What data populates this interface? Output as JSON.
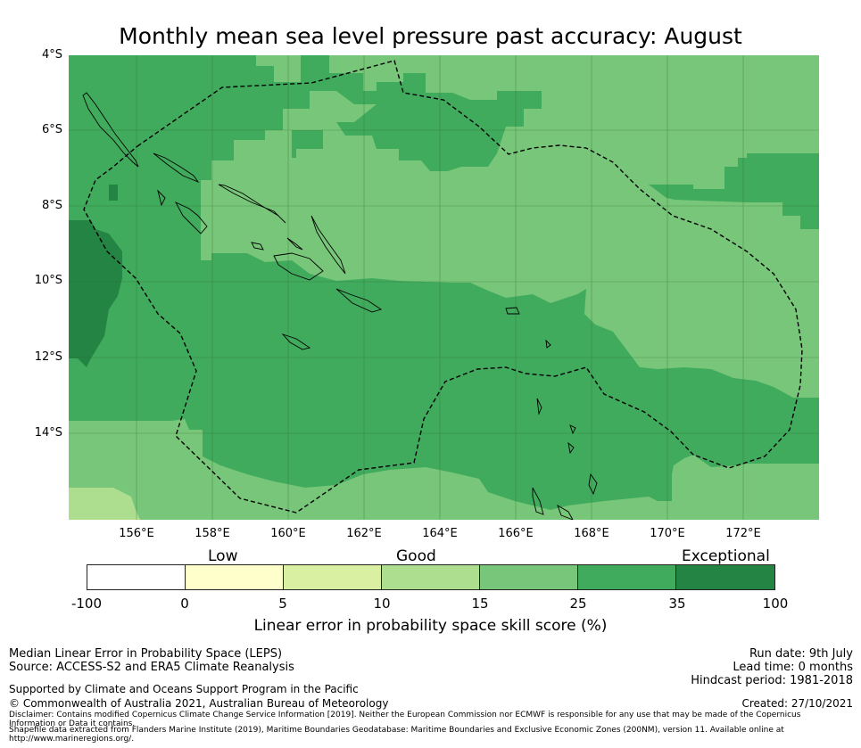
{
  "title": "Monthly mean sea level pressure past accuracy: August",
  "lat_labels": [
    "4°S",
    "6°S",
    "8°S",
    "10°S",
    "12°S",
    "14°S"
  ],
  "lon_labels": [
    "156°E",
    "158°E",
    "160°E",
    "162°E",
    "164°E",
    "166°E",
    "168°E",
    "170°E",
    "172°E"
  ],
  "colorbar": {
    "category_labels": {
      "low": "Low",
      "good": "Good",
      "exceptional": "Exceptional"
    },
    "ticks": [
      "-100",
      "0",
      "5",
      "10",
      "15",
      "25",
      "35",
      "100"
    ],
    "colors": [
      "#ffffff",
      "#ffffcc",
      "#d9f0a3",
      "#addd8e",
      "#78c679",
      "#41ab5d",
      "#238443"
    ],
    "title": "Linear error in probability space skill score (%)"
  },
  "footer": {
    "line1": "Median Linear Error in Probability Space (LEPS)",
    "line2": "Source: ACCESS-S2 and ERA5 Climate Reanalysis",
    "line3": "Supported by Climate and Oceans Support Program in the Pacific",
    "line4": "© Commonwealth of Australia 2021, Australian Bureau of Meteorology",
    "run_date": "Run date: 9th July",
    "lead_time": "Lead time: 0 months",
    "hindcast": "Hindcast period: 1981-2018",
    "created": "Created: 27/10/2021",
    "disclaimer1": "Disclaimer: Contains modified Copernicus Climate Change Service Information [2019]. Neither the European Commission nor ECMWF is responsible for any use that may be made of the Copernicus",
    "disclaimer2": "Information or Data it contains.",
    "disclaimer3": "Shapefile data extracted from Flanders Marine Institute (2019), Maritime Boundaries Geodatabase: Maritime Boundaries and Exclusive Economic Zones (200NM), version 11. Available online at",
    "disclaimer4": "http://www.marineregions.org/."
  }
}
